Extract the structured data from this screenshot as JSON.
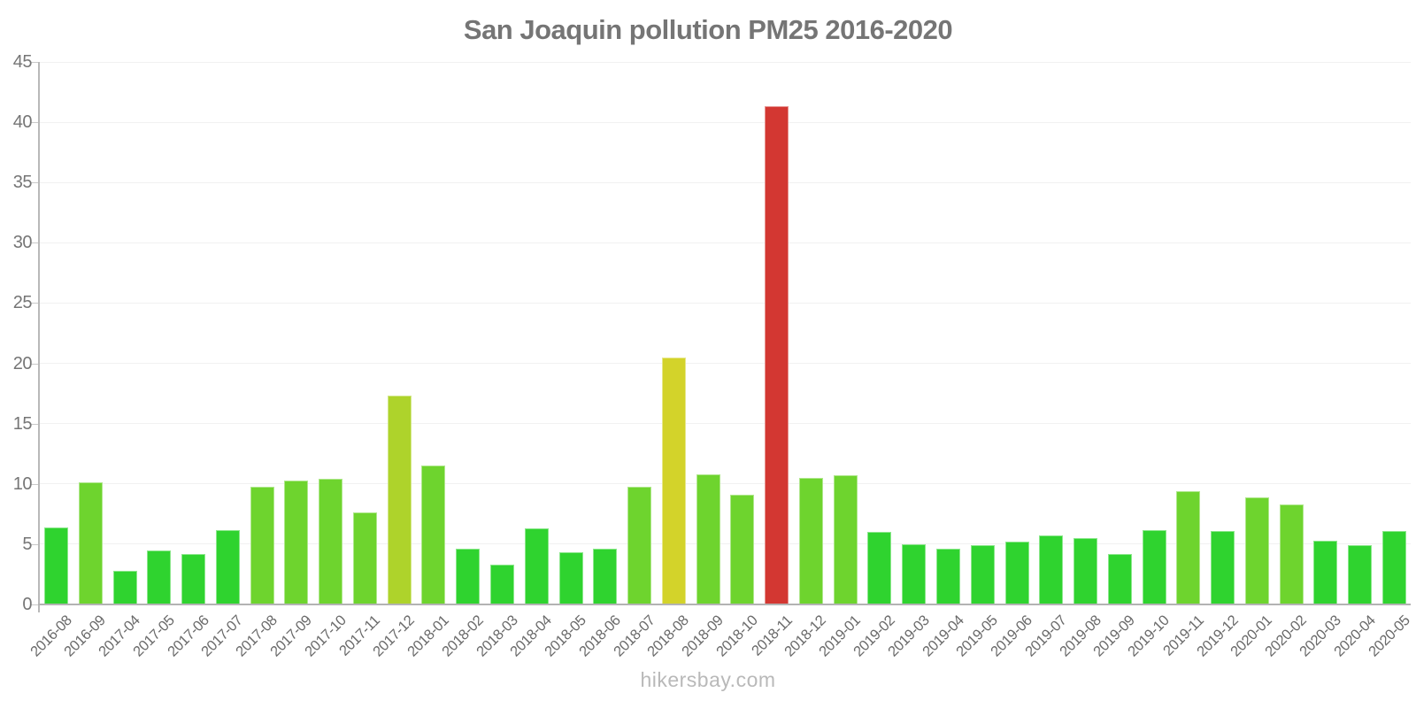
{
  "page": {
    "title": "San Joaquin pollution PM25 2016-2020",
    "watermark": "hikersbay.com"
  },
  "chart_data": {
    "type": "bar",
    "title": "San Joaquin pollution PM25 2016-2020",
    "xlabel": "",
    "ylabel": "",
    "ylim": [
      0,
      45
    ],
    "y_ticks": [
      0,
      5,
      10,
      15,
      20,
      25,
      30,
      35,
      40,
      45
    ],
    "grid": "horizontal-faint",
    "legend": "none",
    "categories": [
      "2016-08",
      "2016-09",
      "2017-04",
      "2017-05",
      "2017-06",
      "2017-07",
      "2017-08",
      "2017-09",
      "2017-10",
      "2017-11",
      "2017-12",
      "2018-01",
      "2018-02",
      "2018-03",
      "2018-04",
      "2018-05",
      "2018-06",
      "2018-07",
      "2018-08",
      "2018-09",
      "2018-10",
      "2018-11",
      "2018-12",
      "2019-01",
      "2019-02",
      "2019-03",
      "2019-04",
      "2019-05",
      "2019-06",
      "2019-07",
      "2019-08",
      "2019-09",
      "2019-10",
      "2019-11",
      "2019-12",
      "2020-01",
      "2020-02",
      "2020-03",
      "2020-04",
      "2020-05"
    ],
    "values": [
      6.4,
      10.1,
      2.8,
      4.5,
      4.2,
      6.2,
      9.8,
      10.3,
      10.4,
      7.6,
      17.3,
      11.5,
      4.6,
      3.3,
      6.3,
      4.3,
      4.6,
      9.8,
      20.5,
      10.8,
      9.1,
      41.3,
      10.5,
      10.7,
      6.0,
      5.0,
      4.6,
      4.9,
      5.2,
      5.7,
      5.5,
      4.2,
      6.2,
      9.4,
      6.1,
      8.9,
      8.3,
      5.3,
      4.9,
      6.1
    ],
    "color_scale": [
      {
        "upto": 7,
        "color": "#2fd32f",
        "label": "good"
      },
      {
        "upto": 15,
        "color": "#6ed42e",
        "label": "fair"
      },
      {
        "upto": 20,
        "color": "#aed32b",
        "label": "moderate"
      },
      {
        "upto": 30,
        "color": "#d3d32a",
        "label": "elevated"
      },
      {
        "upto": 100,
        "color": "#d33732",
        "label": "high"
      }
    ]
  },
  "colors": {
    "title_text": "#757575",
    "axis_text": "#757575",
    "x_label_text": "#6a6a6a",
    "axis_line": "#b3b3b3",
    "gridline": "#f1f1f1",
    "watermark_text": "#b9b9b9",
    "background": "#ffffff"
  }
}
